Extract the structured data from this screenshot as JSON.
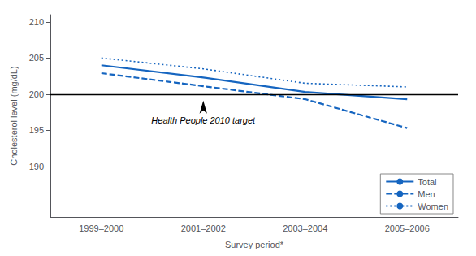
{
  "chart_data": {
    "type": "line",
    "categories": [
      "1999–2000",
      "2001–2002",
      "2003–2004",
      "2005–2006"
    ],
    "series": [
      {
        "name": "Total",
        "color": "#1565C0",
        "line_style": "solid",
        "values": [
          204.0,
          202.3,
          200.3,
          199.3
        ]
      },
      {
        "name": "Men",
        "color": "#1565C0",
        "line_style": "dashed",
        "values": [
          202.9,
          201.1,
          199.3,
          195.3
        ]
      },
      {
        "name": "Women",
        "color": "#1565C0",
        "line_style": "dotted",
        "values": [
          205.0,
          203.5,
          201.5,
          201.0
        ]
      }
    ],
    "xlabel": "Survey period*",
    "ylabel": "Cholesterol level (mg/dL)",
    "ylim": [
      183,
      211
    ],
    "yticks": [
      190,
      195,
      200,
      205,
      210
    ],
    "target_line": 200,
    "annotation": {
      "text": "Health People 2010 target",
      "x": "2001–2002",
      "y": 200
    },
    "legend": "lower right",
    "grid": false
  }
}
